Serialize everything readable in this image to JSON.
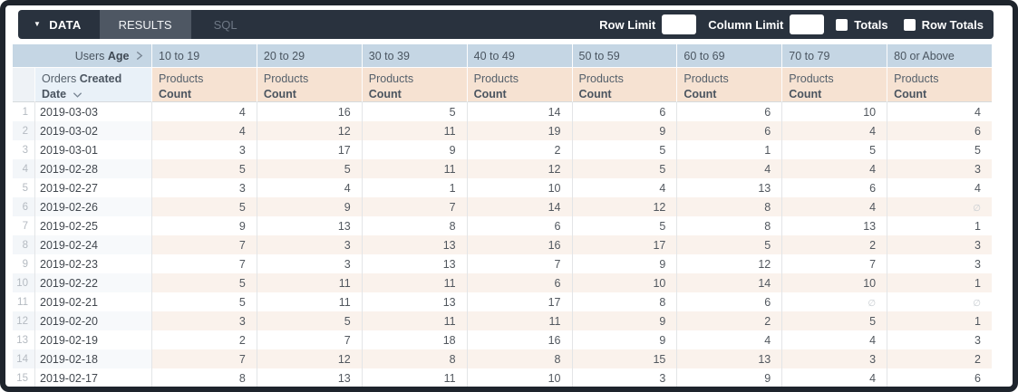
{
  "toolbar": {
    "data_tab": "DATA",
    "results_tab": "RESULTS",
    "sql_tab": "SQL",
    "row_limit_label": "Row Limit",
    "row_limit_value": "",
    "column_limit_label": "Column Limit",
    "column_limit_value": "",
    "totals_label": "Totals",
    "totals_checked": false,
    "row_totals_label": "Row Totals",
    "row_totals_checked": false
  },
  "table": {
    "users_label": "Users",
    "age_label": "Age",
    "orders_label": "Orders",
    "created_label": "Created",
    "date_label": "Date",
    "measure": {
      "regular": "Products",
      "bold": "Count"
    },
    "age_buckets": [
      "10 to 19",
      "20 to 29",
      "30 to 39",
      "40 to 49",
      "50 to 59",
      "60 to 69",
      "70 to 79",
      "80 or Above"
    ],
    "null_symbol": "∅",
    "rows": [
      {
        "index": "1",
        "date": "2019-03-03",
        "values": [
          4,
          16,
          5,
          14,
          6,
          6,
          10,
          4
        ]
      },
      {
        "index": "2",
        "date": "2019-03-02",
        "values": [
          4,
          12,
          11,
          19,
          9,
          6,
          4,
          6
        ]
      },
      {
        "index": "3",
        "date": "2019-03-01",
        "values": [
          3,
          17,
          9,
          2,
          5,
          1,
          5,
          5
        ]
      },
      {
        "index": "4",
        "date": "2019-02-28",
        "values": [
          5,
          5,
          11,
          12,
          5,
          4,
          4,
          3
        ]
      },
      {
        "index": "5",
        "date": "2019-02-27",
        "values": [
          3,
          4,
          1,
          10,
          4,
          13,
          6,
          4
        ]
      },
      {
        "index": "6",
        "date": "2019-02-26",
        "values": [
          5,
          9,
          7,
          14,
          12,
          8,
          4,
          null
        ]
      },
      {
        "index": "7",
        "date": "2019-02-25",
        "values": [
          9,
          13,
          8,
          6,
          5,
          8,
          13,
          1
        ]
      },
      {
        "index": "8",
        "date": "2019-02-24",
        "values": [
          7,
          3,
          13,
          16,
          17,
          5,
          2,
          3
        ]
      },
      {
        "index": "9",
        "date": "2019-02-23",
        "values": [
          7,
          3,
          13,
          7,
          9,
          12,
          7,
          3
        ]
      },
      {
        "index": "10",
        "date": "2019-02-22",
        "values": [
          5,
          11,
          11,
          6,
          10,
          14,
          10,
          1
        ]
      },
      {
        "index": "11",
        "date": "2019-02-21",
        "values": [
          5,
          11,
          13,
          17,
          8,
          6,
          null,
          null
        ]
      },
      {
        "index": "12",
        "date": "2019-02-20",
        "values": [
          3,
          5,
          11,
          11,
          9,
          2,
          5,
          1
        ]
      },
      {
        "index": "13",
        "date": "2019-02-19",
        "values": [
          2,
          7,
          18,
          16,
          9,
          4,
          4,
          3
        ]
      },
      {
        "index": "14",
        "date": "2019-02-18",
        "values": [
          7,
          12,
          8,
          8,
          15,
          13,
          3,
          2
        ]
      },
      {
        "index": "15",
        "date": "2019-02-17",
        "values": [
          8,
          13,
          11,
          10,
          3,
          9,
          4,
          6
        ]
      }
    ]
  },
  "colors": {
    "toolbar_bg": "#29323e",
    "results_tab_bg": "#4e5763",
    "pivot_header_blue": "#c5d6e4",
    "row_dim_blue": "#e9f1f8",
    "measure_peach": "#f6e2d2",
    "stripe_blue": "#f7f9fb",
    "stripe_peach": "#faf2ec"
  }
}
